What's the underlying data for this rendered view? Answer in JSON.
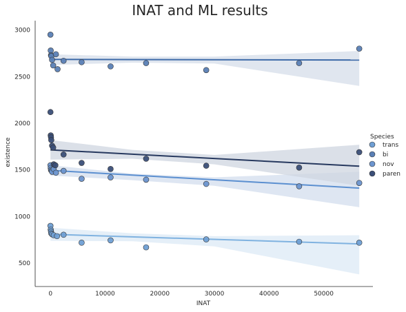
{
  "chart_data": {
    "type": "scatter",
    "title": "INAT and ML results",
    "xlabel": "INAT",
    "ylabel": "existence",
    "xlim": [
      -2800,
      59000
    ],
    "ylim": [
      250,
      3100
    ],
    "xticks": [
      0,
      10000,
      20000,
      30000,
      40000,
      50000
    ],
    "yticks": [
      500,
      1000,
      1500,
      2000,
      2500,
      3000
    ],
    "grid": false,
    "legend": {
      "title": "Species",
      "placement": "right"
    },
    "series": [
      {
        "name": "trans",
        "color": "#6f9fd4",
        "points": [
          {
            "x": 0,
            "y": 900
          },
          {
            "x": 50,
            "y": 860
          },
          {
            "x": 100,
            "y": 840
          },
          {
            "x": 150,
            "y": 820
          },
          {
            "x": 300,
            "y": 810
          },
          {
            "x": 600,
            "y": 800
          },
          {
            "x": 1200,
            "y": 790
          },
          {
            "x": 2400,
            "y": 805
          },
          {
            "x": 5700,
            "y": 720
          },
          {
            "x": 11000,
            "y": 745
          },
          {
            "x": 17500,
            "y": 670
          },
          {
            "x": 28500,
            "y": 755
          },
          {
            "x": 45500,
            "y": 730
          },
          {
            "x": 56500,
            "y": 720
          }
        ],
        "fit": {
          "x": [
            0,
            56500
          ],
          "y": [
            810,
            707
          ]
        },
        "ci": {
          "x": [
            0,
            15000,
            30000,
            56500
          ],
          "upper": [
            880,
            820,
            790,
            800
          ],
          "lower": [
            740,
            735,
            680,
            380
          ]
        },
        "line_color": "#7fb2e0",
        "band_color": "#dce9f6"
      },
      {
        "name": "bi",
        "color": "#5a7fb5",
        "points": [
          {
            "x": 0,
            "y": 2950
          },
          {
            "x": 50,
            "y": 2780
          },
          {
            "x": 100,
            "y": 2730
          },
          {
            "x": 150,
            "y": 2720
          },
          {
            "x": 300,
            "y": 2680
          },
          {
            "x": 500,
            "y": 2620
          },
          {
            "x": 1000,
            "y": 2740
          },
          {
            "x": 1300,
            "y": 2580
          },
          {
            "x": 2400,
            "y": 2670
          },
          {
            "x": 5700,
            "y": 2655
          },
          {
            "x": 11000,
            "y": 2610
          },
          {
            "x": 17500,
            "y": 2645
          },
          {
            "x": 28500,
            "y": 2570
          },
          {
            "x": 45500,
            "y": 2645
          },
          {
            "x": 56500,
            "y": 2800
          }
        ],
        "fit": {
          "x": [
            0,
            56500
          ],
          "y": [
            2685,
            2678
          ]
        },
        "ci": {
          "x": [
            0,
            15000,
            30000,
            56500
          ],
          "upper": [
            2740,
            2715,
            2715,
            2775
          ],
          "lower": [
            2625,
            2650,
            2640,
            2400
          ]
        },
        "line_color": "#3d6aa8",
        "band_color": "#d6dee9"
      },
      {
        "name": "nov",
        "color": "#6c95cf",
        "points": [
          {
            "x": 0,
            "y": 1550
          },
          {
            "x": 50,
            "y": 1520
          },
          {
            "x": 100,
            "y": 1500
          },
          {
            "x": 200,
            "y": 1490
          },
          {
            "x": 300,
            "y": 1480
          },
          {
            "x": 600,
            "y": 1510
          },
          {
            "x": 1000,
            "y": 1470
          },
          {
            "x": 2400,
            "y": 1490
          },
          {
            "x": 5700,
            "y": 1405
          },
          {
            "x": 11000,
            "y": 1420
          },
          {
            "x": 17500,
            "y": 1395
          },
          {
            "x": 28500,
            "y": 1350
          },
          {
            "x": 45500,
            "y": 1325
          },
          {
            "x": 56500,
            "y": 1360
          }
        ],
        "fit": {
          "x": [
            0,
            56500
          ],
          "y": [
            1495,
            1305
          ]
        },
        "ci": {
          "x": [
            0,
            15000,
            30000,
            56500
          ],
          "upper": [
            1550,
            1460,
            1420,
            1480
          ],
          "lower": [
            1440,
            1390,
            1330,
            1100
          ]
        },
        "line_color": "#5b8fd0",
        "band_color": "#d3dded"
      },
      {
        "name": "paren",
        "color": "#3b4f78",
        "points": [
          {
            "x": 0,
            "y": 2120
          },
          {
            "x": 50,
            "y": 1870
          },
          {
            "x": 100,
            "y": 1850
          },
          {
            "x": 150,
            "y": 1820
          },
          {
            "x": 300,
            "y": 1760
          },
          {
            "x": 500,
            "y": 1740
          },
          {
            "x": 600,
            "y": 1560
          },
          {
            "x": 900,
            "y": 1550
          },
          {
            "x": 2400,
            "y": 1665
          },
          {
            "x": 5700,
            "y": 1575
          },
          {
            "x": 11000,
            "y": 1510
          },
          {
            "x": 17500,
            "y": 1620
          },
          {
            "x": 28500,
            "y": 1545
          },
          {
            "x": 45500,
            "y": 1525
          },
          {
            "x": 56500,
            "y": 1690
          }
        ],
        "fit": {
          "x": [
            0,
            56500
          ],
          "y": [
            1715,
            1540
          ]
        },
        "ci": {
          "x": [
            0,
            15000,
            30000,
            56500
          ],
          "upper": [
            1820,
            1715,
            1660,
            1770
          ],
          "lower": [
            1610,
            1620,
            1560,
            1330
          ]
        },
        "line_color": "#26385e",
        "band_color": "#cfd5e0"
      }
    ]
  }
}
